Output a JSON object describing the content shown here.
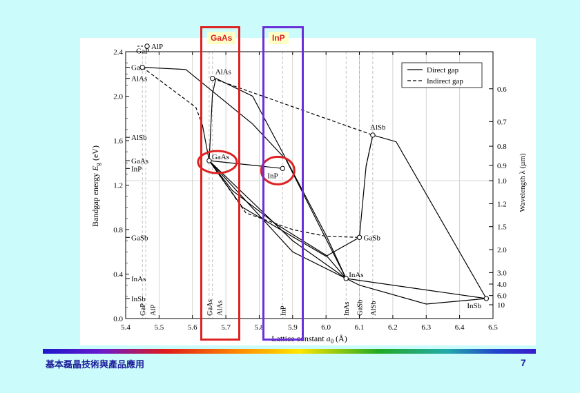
{
  "chart_data": {
    "type": "line",
    "xlabel_text": "Lattice constant",
    "xlabel_symbol": "a",
    "xlabel_sub": "0",
    "xlabel_unit": "(Å)",
    "ylabel_text": "Bandgap energy",
    "ylabel_symbol": "E",
    "ylabel_sub": "g",
    "ylabel_unit": "(eV)",
    "right_label": "Wavelength  λ  (µm)",
    "xlim": [
      5.4,
      6.5
    ],
    "ylim": [
      0.0,
      2.4
    ],
    "xticks": [
      5.4,
      5.5,
      5.6,
      5.7,
      5.8,
      5.9,
      6.0,
      6.1,
      6.2,
      6.3,
      6.4,
      6.5
    ],
    "xtick_labels": [
      "5.4",
      "5.5",
      "5.6",
      "5.7",
      "5.8",
      "5.9",
      "6.0",
      "6.1",
      "6.2",
      "6.3",
      "6.4",
      "6.5"
    ],
    "yticks": [
      0.0,
      0.4,
      0.8,
      1.2,
      1.6,
      2.0,
      2.4
    ],
    "ytick_labels": [
      "0.0",
      "0.4",
      "0.8",
      "1.2",
      "1.6",
      "2.0",
      "2.4"
    ],
    "wavelength_ticks": [
      {
        "label": "0.6",
        "um": 0.6
      },
      {
        "label": "0.7",
        "um": 0.7
      },
      {
        "label": "0.8",
        "um": 0.8
      },
      {
        "label": "0.9",
        "um": 0.9
      },
      {
        "label": "1.0",
        "um": 1.0
      },
      {
        "label": "1.2",
        "um": 1.2
      },
      {
        "label": "1.5",
        "um": 1.5
      },
      {
        "label": "2.0",
        "um": 2.0
      },
      {
        "label": "3.0",
        "um": 3.0
      },
      {
        "label": "4.0",
        "um": 4.0
      },
      {
        "label": "6.0",
        "um": 6.0
      },
      {
        "label": "10",
        "um": 10
      }
    ],
    "legend_position": "top-right",
    "legend": [
      {
        "label": "Direct gap",
        "style": "solid"
      },
      {
        "label": "Indirect gap",
        "style": "dashed"
      }
    ],
    "left_axis_labels": [
      {
        "label": "GaP",
        "y": 2.26
      },
      {
        "label": "AlAs",
        "y": 2.16
      },
      {
        "label": "AlSb",
        "y": 1.63
      },
      {
        "label": "GaAs",
        "y": 1.42
      },
      {
        "label": "InP",
        "y": 1.35
      },
      {
        "label": "GaSb",
        "y": 0.73
      },
      {
        "label": "InAs",
        "y": 0.36
      },
      {
        "label": "InSb",
        "y": 0.18
      }
    ],
    "bottom_axis_labels": [
      {
        "label": "GaP",
        "x": 5.45
      },
      {
        "label": "AlP",
        "x": 5.46
      },
      {
        "label": "GaAs",
        "x": 5.65
      },
      {
        "label": "AlAs",
        "x": 5.66
      },
      {
        "label": "InP",
        "x": 5.87
      },
      {
        "label": "InAs",
        "x": 6.06
      },
      {
        "label": "GaSb",
        "x": 6.1
      },
      {
        "label": "AlSb",
        "x": 6.14
      }
    ],
    "reference_lines_x": [
      5.45,
      5.46,
      5.65,
      5.66,
      5.87,
      6.06,
      6.1,
      6.14
    ],
    "points": [
      {
        "label": "AlP",
        "x": 5.46,
        "y": 2.45
      },
      {
        "label": "GaP",
        "x": 5.45,
        "y": 2.26
      },
      {
        "label": "AlAs",
        "x": 5.66,
        "y": 2.16
      },
      {
        "label": "GaAs",
        "x": 5.65,
        "y": 1.42
      },
      {
        "label": "InP",
        "x": 5.87,
        "y": 1.35
      },
      {
        "label": "AlSb",
        "x": 6.14,
        "y": 1.65
      },
      {
        "label": "GaSb",
        "x": 6.1,
        "y": 0.73
      },
      {
        "label": "InAs",
        "x": 6.06,
        "y": 0.36
      },
      {
        "label": "InSb",
        "x": 6.48,
        "y": 0.18
      }
    ],
    "series": [
      {
        "style": "dashed",
        "points": [
          [
            5.45,
            2.26
          ],
          [
            5.61,
            1.9
          ],
          [
            5.63,
            1.74
          ]
        ]
      },
      {
        "style": "solid",
        "points": [
          [
            5.63,
            1.74
          ],
          [
            5.65,
            1.42
          ]
        ]
      },
      {
        "style": "solid",
        "points": [
          [
            5.45,
            2.26
          ],
          [
            5.58,
            2.24
          ],
          [
            5.78,
            1.75
          ],
          [
            5.88,
            1.43
          ],
          [
            6.06,
            0.36
          ]
        ]
      },
      {
        "style": "solid",
        "points": [
          [
            5.65,
            1.42
          ],
          [
            5.66,
            2.02
          ],
          [
            5.67,
            2.16
          ]
        ]
      },
      {
        "style": "dashed",
        "points": [
          [
            5.66,
            2.16
          ],
          [
            6.14,
            1.65
          ]
        ]
      },
      {
        "style": "solid",
        "points": [
          [
            6.14,
            1.65
          ],
          [
            6.21,
            1.59
          ],
          [
            6.48,
            0.18
          ]
        ]
      },
      {
        "style": "solid",
        "points": [
          [
            5.67,
            2.16
          ],
          [
            5.78,
            2.0
          ],
          [
            5.86,
            1.55
          ],
          [
            6.0,
            0.75
          ],
          [
            6.06,
            0.36
          ]
        ]
      },
      {
        "style": "solid",
        "points": [
          [
            5.65,
            1.42
          ],
          [
            5.72,
            1.15
          ],
          [
            5.85,
            0.85
          ],
          [
            6.0,
            0.57
          ],
          [
            6.06,
            0.36
          ]
        ]
      },
      {
        "style": "dashed",
        "points": [
          [
            5.65,
            1.42
          ],
          [
            5.76,
            0.95
          ],
          [
            5.9,
            0.8
          ],
          [
            6.0,
            0.74
          ],
          [
            6.1,
            0.73
          ]
        ]
      },
      {
        "style": "solid",
        "points": [
          [
            5.65,
            1.42
          ],
          [
            5.75,
            1.0
          ],
          [
            6.0,
            0.56
          ],
          [
            6.1,
            0.73
          ]
        ]
      },
      {
        "style": "solid",
        "points": [
          [
            6.1,
            0.73
          ],
          [
            6.12,
            1.37
          ],
          [
            6.14,
            1.65
          ]
        ]
      },
      {
        "style": "dashed",
        "points": [
          [
            6.12,
            1.37
          ],
          [
            6.14,
            1.65
          ]
        ]
      },
      {
        "style": "solid",
        "points": [
          [
            5.65,
            1.42
          ],
          [
            5.9,
            0.7
          ],
          [
            6.06,
            0.36
          ]
        ]
      },
      {
        "style": "solid",
        "points": [
          [
            5.65,
            1.42
          ],
          [
            5.9,
            0.6
          ],
          [
            6.1,
            0.3
          ],
          [
            6.3,
            0.13
          ],
          [
            6.48,
            0.18
          ]
        ]
      },
      {
        "style": "solid",
        "points": [
          [
            6.06,
            0.36
          ],
          [
            6.48,
            0.18
          ]
        ]
      },
      {
        "style": "solid",
        "points": [
          [
            5.65,
            1.42
          ],
          [
            5.87,
            1.35
          ]
        ]
      }
    ]
  },
  "highlights": [
    {
      "label": "GaAs",
      "color": "#dd2222"
    },
    {
      "label": "InP",
      "color": "#6a2fd6"
    }
  ],
  "circle_color": "#dd2222",
  "footer": {
    "title": "基本磊晶技術與產品應用",
    "page_number": "7",
    "text_color": "#1a1a99"
  }
}
